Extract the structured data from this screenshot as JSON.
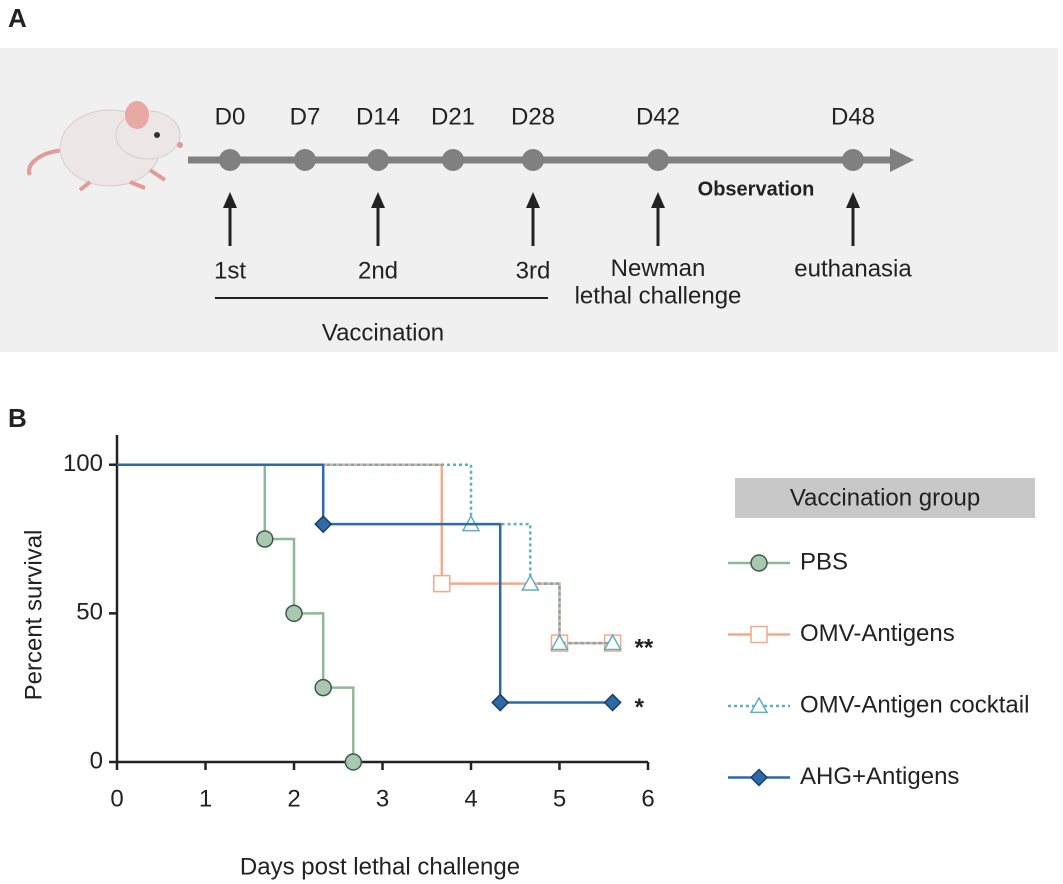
{
  "panel_a": {
    "label": "A",
    "days": [
      "D0",
      "D7",
      "D14",
      "D21",
      "D28",
      "D42",
      "D48"
    ],
    "events": [
      "1st",
      "2nd",
      "3rd",
      "Newman\nlethal challenge",
      "euthanasia"
    ],
    "bracket_label": "Vaccination",
    "period_label": "Observation"
  },
  "chart_data": {
    "type": "step",
    "panel_label": "B",
    "xlabel": "Days post lethal challenge",
    "ylabel": "Percent survival",
    "xlim": [
      0,
      6
    ],
    "xticks": [
      0,
      1,
      2,
      3,
      4,
      5,
      6
    ],
    "ylim": [
      0,
      110
    ],
    "yticks": [
      0,
      50,
      100
    ],
    "legend_title": "Vaccination group",
    "series": [
      {
        "name": "PBS",
        "color": "#8fb89a",
        "marker": "circle",
        "linestyle": "solid",
        "x": [
          0,
          1.67,
          2,
          2.33,
          2.67
        ],
        "values": [
          100,
          75,
          50,
          25,
          0
        ]
      },
      {
        "name": "OMV-Antigens",
        "color": "#f4a98a",
        "marker": "square",
        "linestyle": "solid",
        "x": [
          0,
          3.67,
          5,
          5.6
        ],
        "values": [
          100,
          60,
          40,
          40
        ]
      },
      {
        "name": "OMV-Antigen cocktail",
        "color": "#5fb0c0",
        "marker": "triangle",
        "linestyle": "dotted",
        "x": [
          0,
          4,
          4.67,
          5,
          5.6
        ],
        "values": [
          100,
          80,
          60,
          40,
          40
        ]
      },
      {
        "name": "AHG+Antigens",
        "color": "#2e6aa6",
        "marker": "diamond",
        "linestyle": "solid",
        "x": [
          0,
          2.33,
          4.33,
          5.6
        ],
        "values": [
          100,
          80,
          20,
          20
        ]
      }
    ],
    "annotations": [
      {
        "text": "**",
        "series": 1
      },
      {
        "text": "*",
        "series": 3
      }
    ]
  }
}
